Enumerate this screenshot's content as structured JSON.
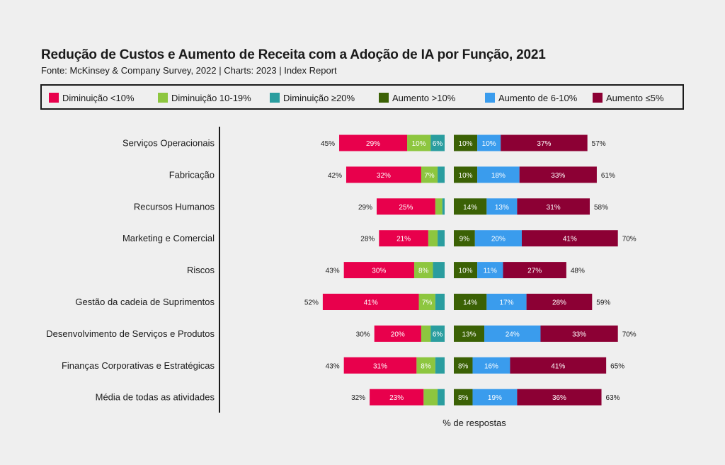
{
  "chart_data": {
    "type": "bar",
    "title": "Redução de Custos e Aumento de Receita com a Adoção de IA por Função, 2021",
    "subtitle": "Fonte: McKinsey & Company Survey, 2022 | Charts: 2023 | Index Report",
    "xlabel": "% de respostas",
    "categories": [
      "Serviços Operacionais",
      "Fabricação",
      "Recursos Humanos",
      "Marketing e Comercial",
      "Riscos",
      "Gestão da cadeia de Suprimentos",
      "Desenvolvimento de Serviços e Produtos",
      "Finanças Corporativas e Estratégicas",
      "Média de todas as atividades"
    ],
    "decrease_totals": [
      "45%",
      "42%",
      "29%",
      "28%",
      "43%",
      "52%",
      "30%",
      "43%",
      "32%"
    ],
    "increase_totals": [
      "57%",
      "61%",
      "58%",
      "70%",
      "48%",
      "59%",
      "70%",
      "65%",
      "63%"
    ],
    "decrease_series": [
      {
        "name": "Diminuição <10%",
        "color": "#e8004c",
        "values": [
          29,
          32,
          25,
          21,
          30,
          41,
          20,
          31,
          23
        ],
        "labels": [
          "29%",
          "32%",
          "25%",
          "21%",
          "30%",
          "41%",
          "20%",
          "31%",
          "23%"
        ]
      },
      {
        "name": "Diminuição 10-19%",
        "color": "#8dc63f",
        "values": [
          10,
          7,
          3,
          4,
          8,
          7,
          4,
          8,
          6
        ],
        "labels": [
          "10%",
          "7%",
          "",
          "",
          "8%",
          "7%",
          "",
          "8%",
          ""
        ]
      },
      {
        "name": "Diminuição ≥20%",
        "color": "#2a9d9f",
        "values": [
          6,
          3,
          1,
          3,
          5,
          4,
          6,
          4,
          3
        ],
        "labels": [
          "6%",
          "",
          "",
          "",
          "",
          "",
          "6%",
          "",
          ""
        ]
      }
    ],
    "increase_series": [
      {
        "name": "Aumento >10%",
        "color": "#3b6105",
        "values": [
          10,
          10,
          14,
          9,
          10,
          14,
          13,
          8,
          8
        ],
        "labels": [
          "10%",
          "10%",
          "14%",
          "9%",
          "10%",
          "14%",
          "13%",
          "8%",
          "8%"
        ]
      },
      {
        "name": "Aumento de 6-10%",
        "color": "#3a9ced",
        "values": [
          10,
          18,
          13,
          20,
          11,
          17,
          24,
          16,
          19
        ],
        "labels": [
          "10%",
          "18%",
          "13%",
          "20%",
          "11%",
          "17%",
          "24%",
          "16%",
          "19%"
        ]
      },
      {
        "name": "Aumento ≤5%",
        "color": "#8c0034",
        "values": [
          37,
          33,
          31,
          41,
          27,
          28,
          33,
          41,
          36
        ],
        "labels": [
          "37%",
          "33%",
          "31%",
          "41%",
          "27%",
          "28%",
          "33%",
          "41%",
          "36%"
        ]
      }
    ]
  },
  "legend": [
    {
      "label": "Diminuição <10%",
      "color": "#e8004c"
    },
    {
      "label": "Diminuição 10-19%",
      "color": "#8dc63f"
    },
    {
      "label": "Diminuição ≥20%",
      "color": "#2a9d9f"
    },
    {
      "label": "Aumento >10%",
      "color": "#3b6105"
    },
    {
      "label": "Aumento de 6-10%",
      "color": "#3a9ced"
    },
    {
      "label": "Aumento ≤5%",
      "color": "#8c0034"
    }
  ]
}
